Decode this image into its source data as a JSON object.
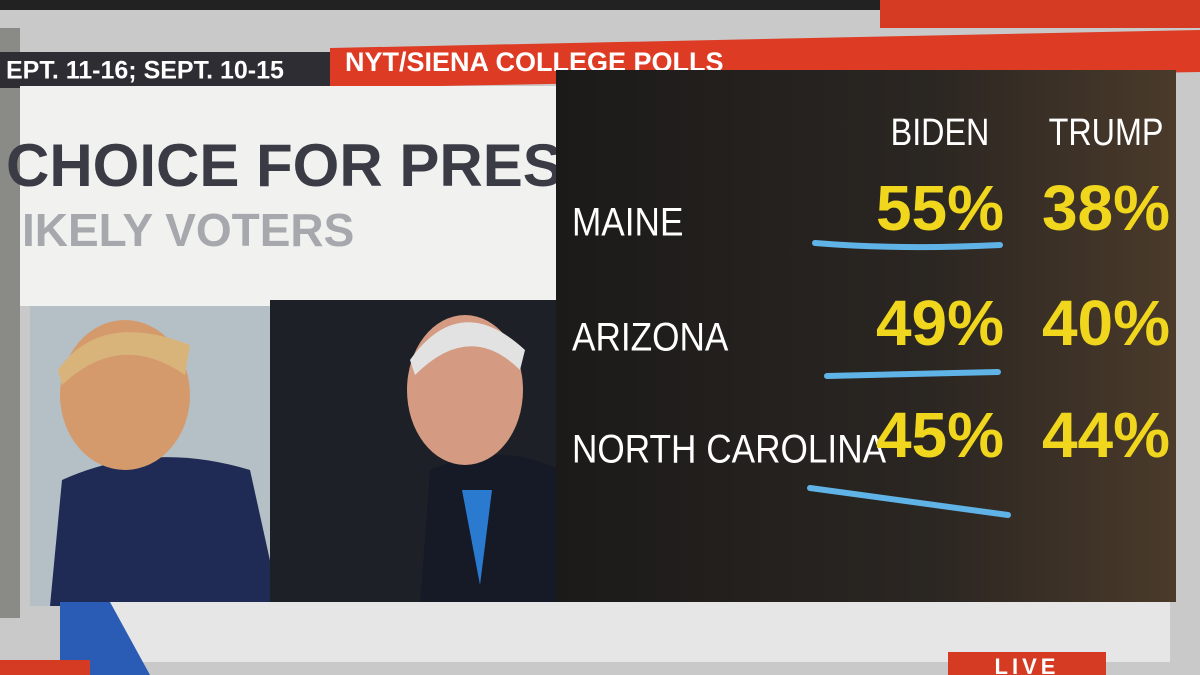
{
  "header": {
    "dates": "EPT. 11-16; SEPT. 10-15",
    "source": "NYT/SIENA COLLEGE POLLS"
  },
  "title": "CHOICE FOR PRES.",
  "subtitle": "IKELY VOTERS",
  "table": {
    "columns": [
      "BIDEN",
      "TRUMP"
    ],
    "rows": [
      [
        "MAINE",
        "55%",
        "38%"
      ],
      [
        "ARIZONA",
        "49%",
        "40%"
      ],
      [
        "NORTH CAROLINA",
        "45%",
        "44%"
      ]
    ]
  },
  "bug": "LIVE"
}
